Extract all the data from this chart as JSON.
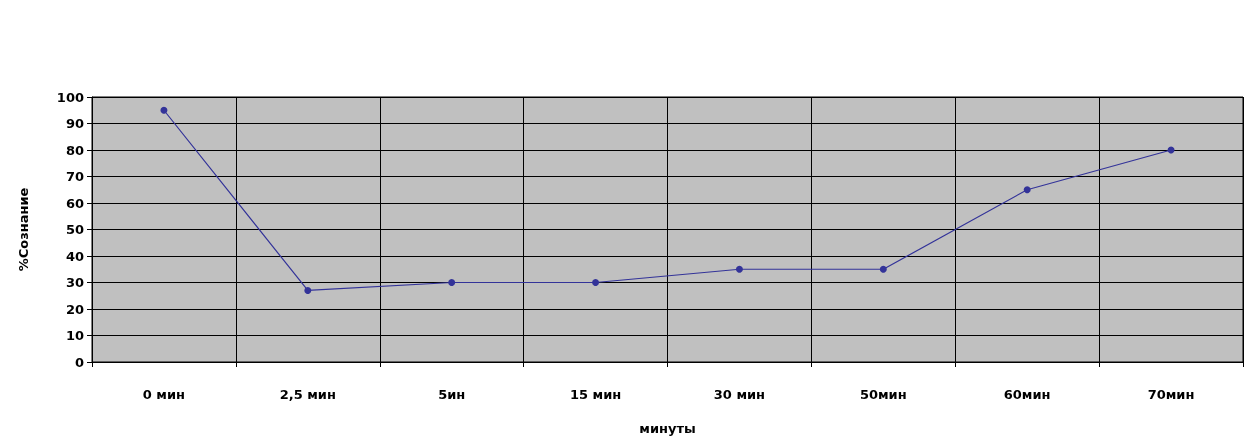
{
  "chart_data": {
    "type": "line",
    "xlabel": "минуты",
    "ylabel": "%Сознание",
    "categories": [
      "0 мин",
      "2,5 мин",
      "5ин",
      "15 мин",
      "30 мин",
      "50мин",
      "60мин",
      "70мин"
    ],
    "series": [
      {
        "color": "#333399",
        "values": [
          95,
          27,
          30,
          30,
          35,
          35,
          65,
          80
        ]
      }
    ],
    "ylim": [
      0,
      100
    ],
    "yticks": [
      0,
      10,
      20,
      30,
      40,
      50,
      60,
      70,
      80,
      90,
      100
    ],
    "grid": true,
    "marker": "circle",
    "line_style": "solid"
  }
}
